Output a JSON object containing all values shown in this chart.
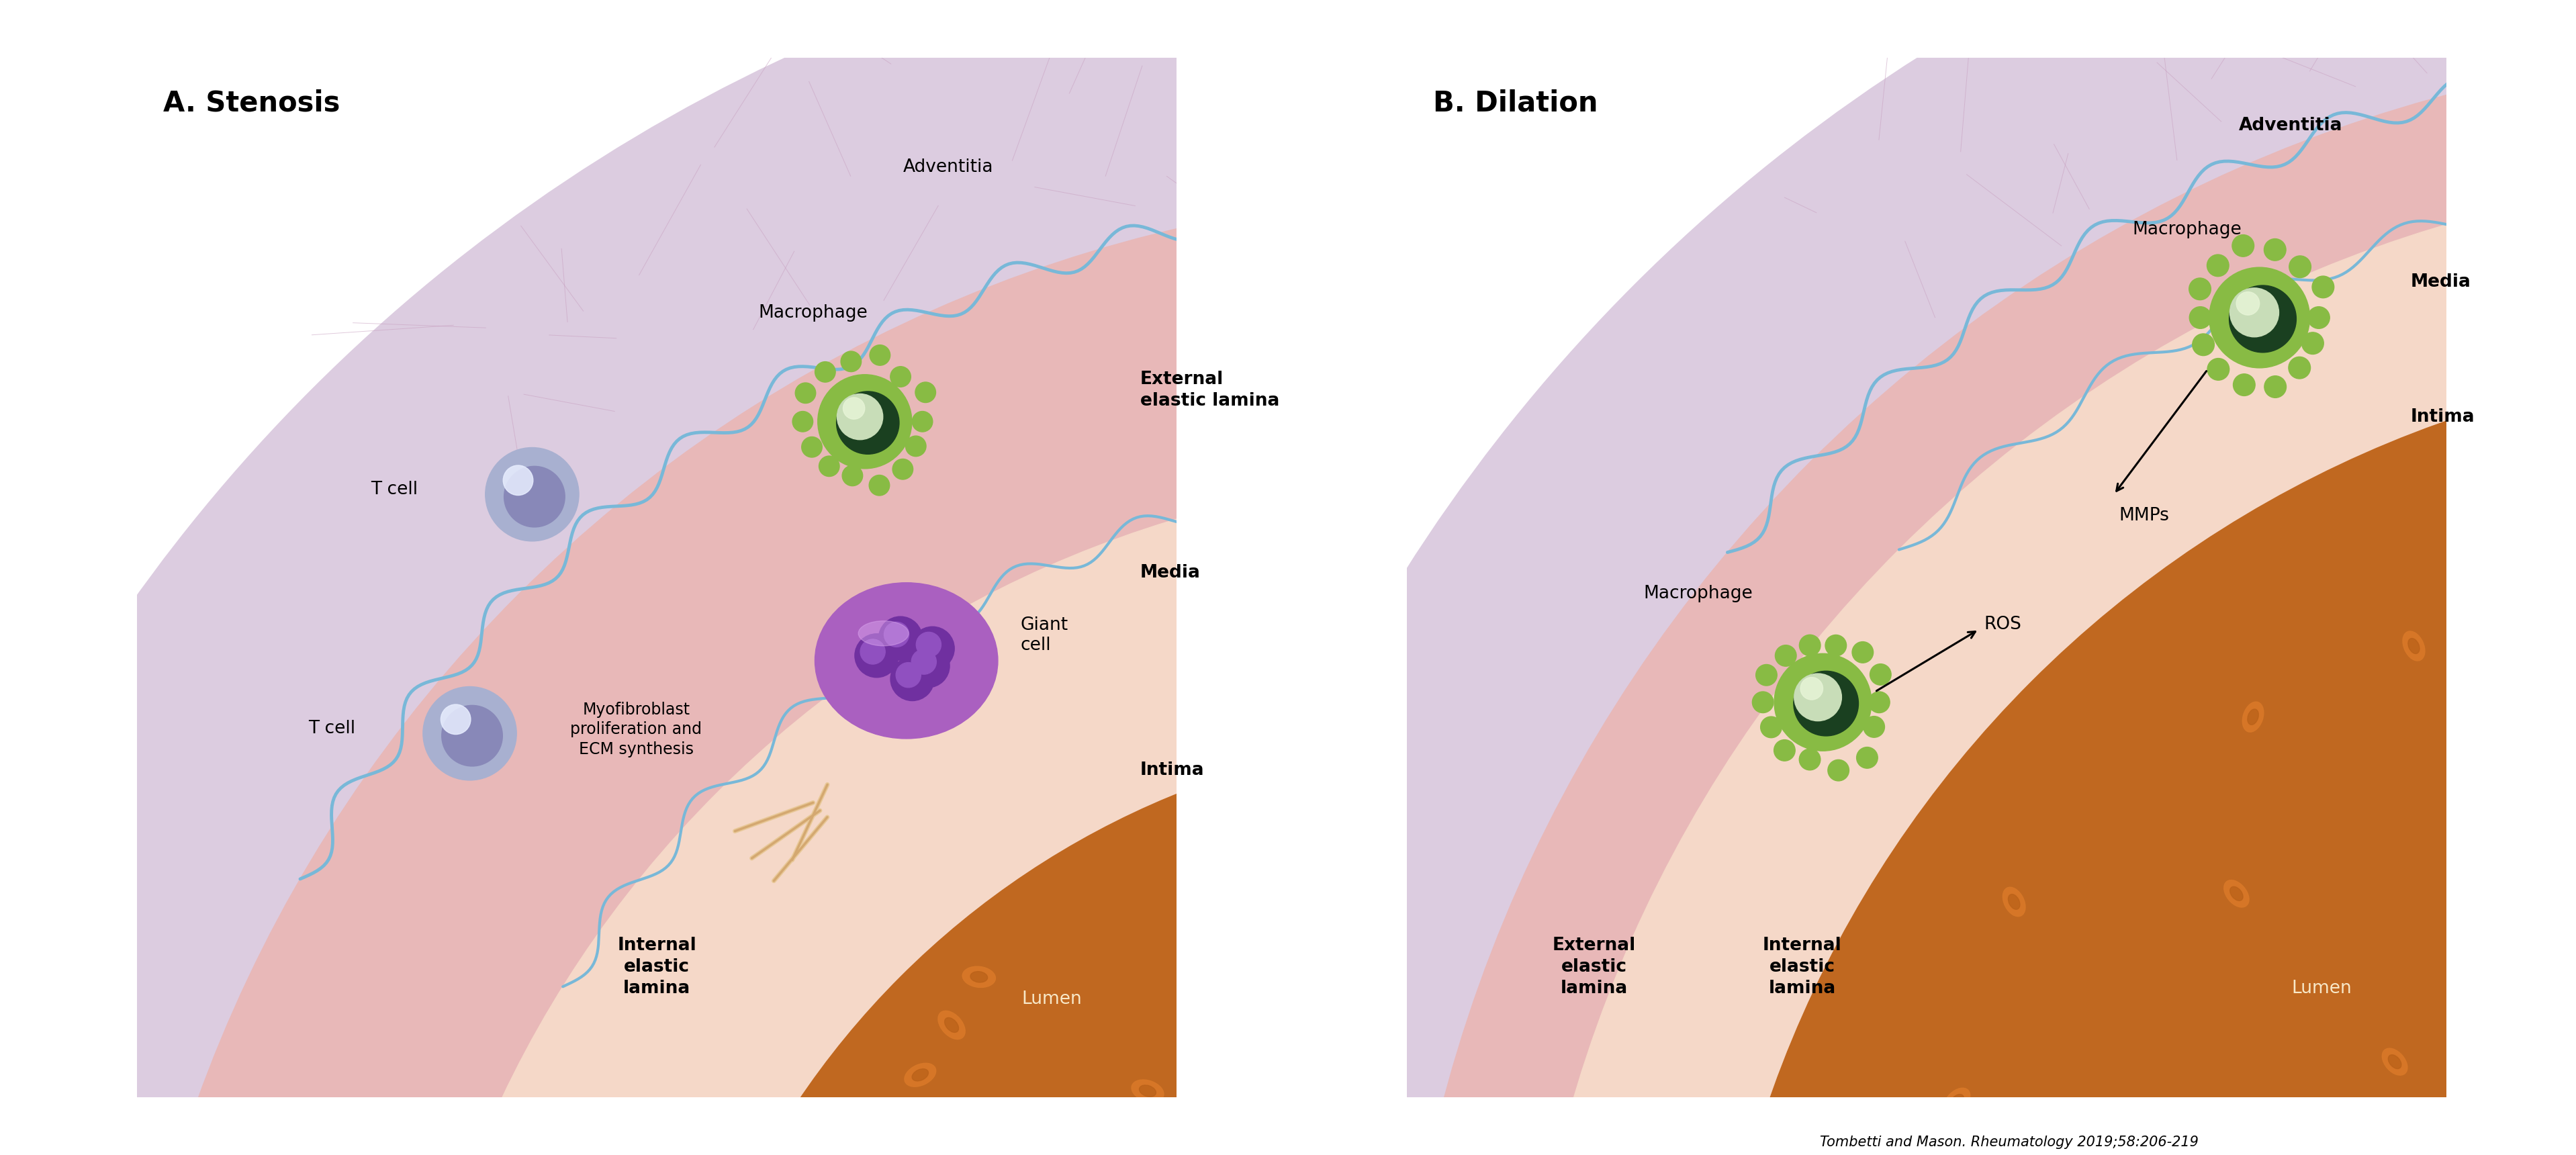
{
  "fig_width": 38.36,
  "fig_height": 17.2,
  "bg_color_fig": "#ffffff",
  "panel_bg": "#a8c8dc",
  "adventitia_color": "#dccce0",
  "adventitia_outer_color": "#ffffff",
  "media_color": "#e8b8b8",
  "intima_color": "#f5d8c8",
  "lumen_color": "#c06820",
  "elastic_color": "#78b8d8",
  "connective_color": "#c8a0c0",
  "rbc_fill": "#d87828",
  "rbc_hole": "#b86018",
  "macrophage_body": "#88bb44",
  "macrophage_nucleus_dark": "#1a4020",
  "macrophage_nucleus_mid": "#2a6030",
  "macrophage_highlight": "#c8e888",
  "tcell_body": "#a8b0d0",
  "tcell_nucleus": "#8888b8",
  "tcell_highlight": "#d0d8f0",
  "giant_body": "#aa60c0",
  "giant_nucleus": "#7030a0",
  "giant_nucleus2": "#9050c0",
  "giant_highlight": "#cc88e0",
  "title_A": "A. Stenosis",
  "title_B": "B. Dilation",
  "citation": "Tombetti and Mason. Rheumatology 2019;58:206-219"
}
